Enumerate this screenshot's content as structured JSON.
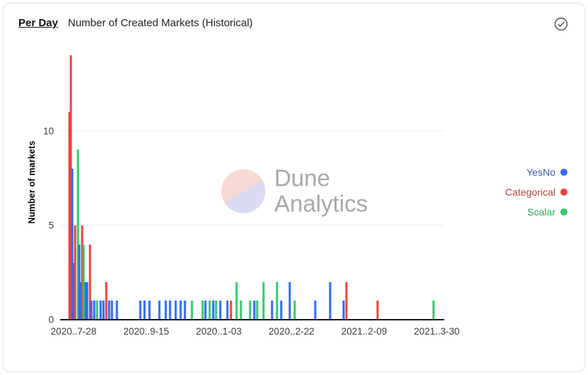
{
  "header": {
    "period_label": "Per Day",
    "title": "Number of Created Markets (Historical)"
  },
  "status": {
    "icon": "check-circle"
  },
  "watermark": {
    "line1": "Dune",
    "line2": "Analytics"
  },
  "legend": {
    "position": "right",
    "items": [
      {
        "label": "YesNo",
        "color": "#2f6af5",
        "text_color": "#3d569f"
      },
      {
        "label": "Categorical",
        "color": "#f0403c",
        "text_color": "#b04238"
      },
      {
        "label": "Scalar",
        "color": "#2fca6e",
        "text_color": "#2fa45f"
      }
    ]
  },
  "chart_data": {
    "type": "bar",
    "title": "Number of Created Markets (Historical)",
    "xlabel": "",
    "ylabel": "Number of markets",
    "ylim": [
      0,
      14.5
    ],
    "yticks": [
      0,
      5,
      10
    ],
    "gridlines": [
      5,
      10
    ],
    "grid": true,
    "legend_position": "right",
    "x_domain": [
      "2020-07-19",
      "2021-04-04"
    ],
    "xticks": [
      {
        "date": "2020-07-28",
        "label": "2020..7-28"
      },
      {
        "date": "2020-09-15",
        "label": "2020..9-15"
      },
      {
        "date": "2020-11-03",
        "label": "2020..1-03"
      },
      {
        "date": "2020-12-22",
        "label": "2020..2-22"
      },
      {
        "date": "2021-02-09",
        "label": "2021..2-09"
      },
      {
        "date": "2021-03-30",
        "label": "2021..3-30"
      }
    ],
    "series_colors": {
      "YesNo": "#2f6af5",
      "Categorical": "#f0403c",
      "Scalar": "#2fca6e"
    },
    "bars": [
      {
        "date": "2020-07-25",
        "series": "Categorical",
        "value": 11
      },
      {
        "date": "2020-07-26",
        "series": "Categorical",
        "value": 14
      },
      {
        "date": "2020-07-27",
        "series": "YesNo",
        "value": 8
      },
      {
        "date": "2020-07-28",
        "series": "YesNo",
        "value": 3
      },
      {
        "date": "2020-07-29",
        "series": "Categorical",
        "value": 5
      },
      {
        "date": "2020-07-31",
        "series": "Scalar",
        "value": 9
      },
      {
        "date": "2020-08-01",
        "series": "YesNo",
        "value": 4
      },
      {
        "date": "2020-08-02",
        "series": "YesNo",
        "value": 2
      },
      {
        "date": "2020-08-03",
        "series": "Categorical",
        "value": 5
      },
      {
        "date": "2020-08-04",
        "series": "Scalar",
        "value": 4
      },
      {
        "date": "2020-08-05",
        "series": "YesNo",
        "value": 2
      },
      {
        "date": "2020-08-06",
        "series": "YesNo",
        "value": 2
      },
      {
        "date": "2020-08-08",
        "series": "Categorical",
        "value": 4
      },
      {
        "date": "2020-08-09",
        "series": "YesNo",
        "value": 1
      },
      {
        "date": "2020-08-11",
        "series": "YesNo",
        "value": 1
      },
      {
        "date": "2020-08-13",
        "series": "Scalar",
        "value": 1
      },
      {
        "date": "2020-08-15",
        "series": "YesNo",
        "value": 1
      },
      {
        "date": "2020-08-17",
        "series": "YesNo",
        "value": 1
      },
      {
        "date": "2020-08-19",
        "series": "Categorical",
        "value": 2
      },
      {
        "date": "2020-08-21",
        "series": "YesNo",
        "value": 1
      },
      {
        "date": "2020-08-23",
        "series": "YesNo",
        "value": 1
      },
      {
        "date": "2020-08-26",
        "series": "YesNo",
        "value": 1
      },
      {
        "date": "2020-09-11",
        "series": "YesNo",
        "value": 1
      },
      {
        "date": "2020-09-14",
        "series": "YesNo",
        "value": 1
      },
      {
        "date": "2020-09-17",
        "series": "YesNo",
        "value": 1
      },
      {
        "date": "2020-09-24",
        "series": "YesNo",
        "value": 1
      },
      {
        "date": "2020-09-28",
        "series": "YesNo",
        "value": 1
      },
      {
        "date": "2020-10-01",
        "series": "YesNo",
        "value": 1
      },
      {
        "date": "2020-10-05",
        "series": "YesNo",
        "value": 1
      },
      {
        "date": "2020-10-08",
        "series": "YesNo",
        "value": 1
      },
      {
        "date": "2020-10-11",
        "series": "YesNo",
        "value": 1
      },
      {
        "date": "2020-10-16",
        "series": "Scalar",
        "value": 1
      },
      {
        "date": "2020-10-23",
        "series": "Scalar",
        "value": 1
      },
      {
        "date": "2020-10-25",
        "series": "YesNo",
        "value": 1
      },
      {
        "date": "2020-10-28",
        "series": "Scalar",
        "value": 1
      },
      {
        "date": "2020-10-30",
        "series": "YesNo",
        "value": 1
      },
      {
        "date": "2020-11-01",
        "series": "Scalar",
        "value": 1
      },
      {
        "date": "2020-11-04",
        "series": "YesNo",
        "value": 1
      },
      {
        "date": "2020-11-09",
        "series": "YesNo",
        "value": 1
      },
      {
        "date": "2020-11-11",
        "series": "Categorical",
        "value": 1
      },
      {
        "date": "2020-11-15",
        "series": "Scalar",
        "value": 2
      },
      {
        "date": "2020-11-18",
        "series": "Scalar",
        "value": 1
      },
      {
        "date": "2020-11-24",
        "series": "Scalar",
        "value": 1
      },
      {
        "date": "2020-11-27",
        "series": "YesNo",
        "value": 1
      },
      {
        "date": "2020-11-29",
        "series": "Scalar",
        "value": 1
      },
      {
        "date": "2020-12-03",
        "series": "Scalar",
        "value": 2
      },
      {
        "date": "2020-12-09",
        "series": "YesNo",
        "value": 1
      },
      {
        "date": "2020-12-12",
        "series": "Scalar",
        "value": 2
      },
      {
        "date": "2020-12-15",
        "series": "YesNo",
        "value": 1
      },
      {
        "date": "2020-12-21",
        "series": "YesNo",
        "value": 2
      },
      {
        "date": "2020-12-24",
        "series": "Scalar",
        "value": 1
      },
      {
        "date": "2021-01-07",
        "series": "YesNo",
        "value": 1
      },
      {
        "date": "2021-01-17",
        "series": "YesNo",
        "value": 2
      },
      {
        "date": "2021-01-26",
        "series": "YesNo",
        "value": 1
      },
      {
        "date": "2021-01-28",
        "series": "Categorical",
        "value": 2
      },
      {
        "date": "2021-02-18",
        "series": "Categorical",
        "value": 1
      },
      {
        "date": "2021-03-28",
        "series": "Scalar",
        "value": 1
      }
    ]
  }
}
